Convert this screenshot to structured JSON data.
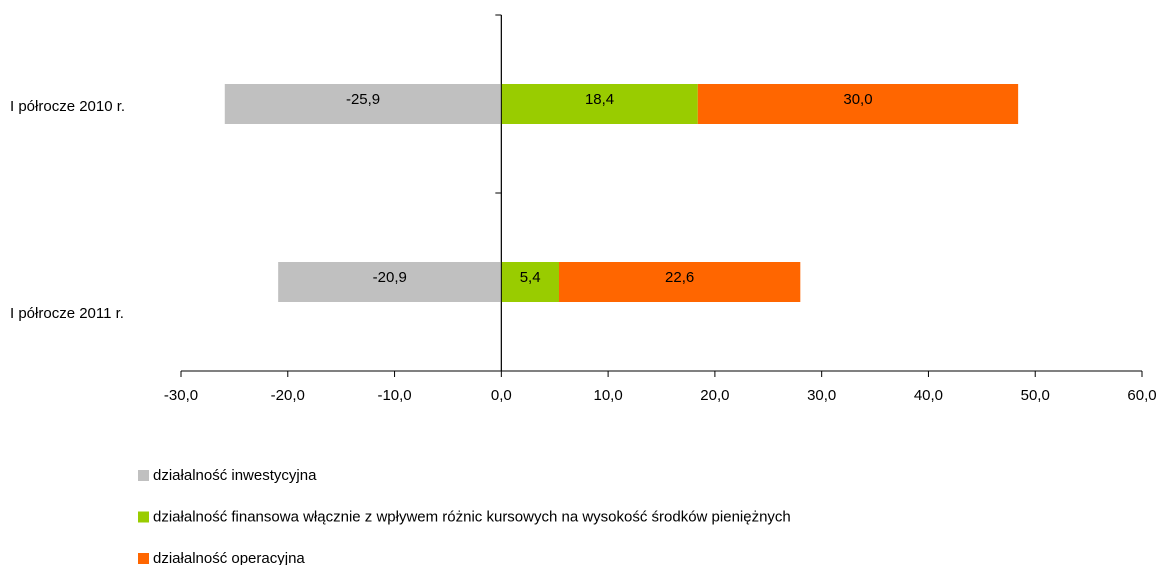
{
  "chart_data": {
    "type": "bar",
    "orientation": "horizontal",
    "stacked": true,
    "categories": [
      "I półrocze 2010 r.",
      "I półrocze 2011 r."
    ],
    "series": [
      {
        "name": "działalność inwestycyjna",
        "color": "#c0c0c0",
        "values": [
          -25.9,
          -20.9
        ],
        "value_labels": [
          "-25,9",
          "-20,9"
        ]
      },
      {
        "name": "działalność finansowa włącznie z wpływem różnic kursowych na wysokość środków pieniężnych",
        "color": "#99cc00",
        "values": [
          18.4,
          5.4
        ],
        "value_labels": [
          "18,4",
          "5,4"
        ]
      },
      {
        "name": "działalność operacyjna",
        "color": "#ff6600",
        "values": [
          30,
          22.6
        ],
        "value_labels": [
          "30,0",
          "22,6"
        ]
      }
    ],
    "xlim": [
      -30,
      60
    ],
    "xticks": [
      {
        "value": -30,
        "label": "-30,0"
      },
      {
        "value": -20,
        "label": "-20,0"
      },
      {
        "value": -10,
        "label": "-10,0"
      },
      {
        "value": 0,
        "label": "0,0"
      },
      {
        "value": 10,
        "label": "10,0"
      },
      {
        "value": 20,
        "label": "20,0"
      },
      {
        "value": 30,
        "label": "30,0"
      },
      {
        "value": 40,
        "label": "40,0"
      },
      {
        "value": 50,
        "label": "50,0"
      },
      {
        "value": 60,
        "label": "60,0"
      }
    ],
    "legend": "bottom"
  }
}
